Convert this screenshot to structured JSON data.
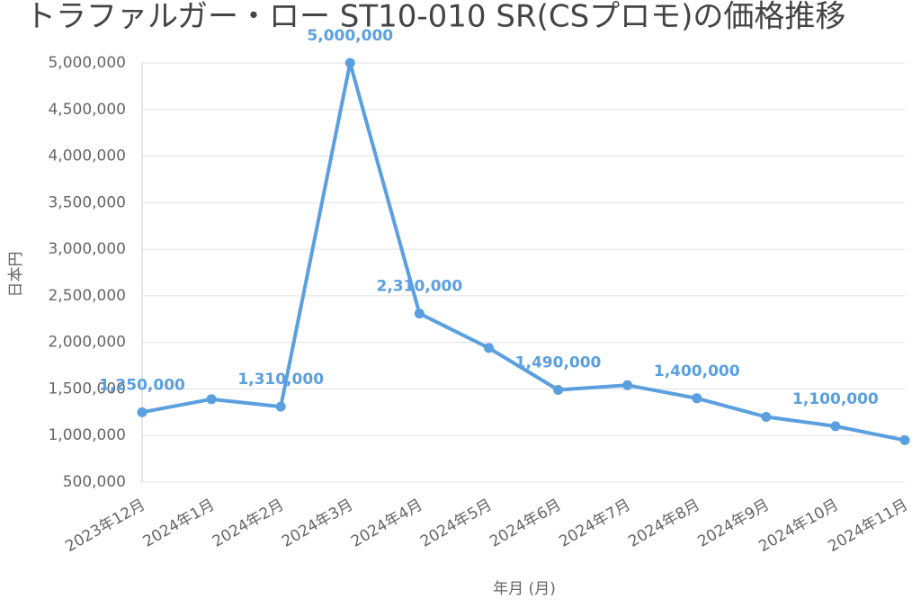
{
  "chart_data": {
    "type": "line",
    "title": "トラファルガー・ロー ST10-010 SR(CSプロモ)の価格推移",
    "x_label": "年月 (月)",
    "y_label": "日本円",
    "categories": [
      "2023年12月",
      "2024年1月",
      "2024年2月",
      "2024年3月",
      "2024年4月",
      "2024年5月",
      "2024年6月",
      "2024年7月",
      "2024年8月",
      "2024年9月",
      "2024年10月",
      "2024年11月"
    ],
    "values": [
      1250000,
      1390000,
      1310000,
      5000000,
      2310000,
      1940000,
      1490000,
      1540000,
      1400000,
      1200000,
      1100000,
      950000
    ],
    "value_labels": [
      "1,250,000",
      null,
      "1,310,000",
      "5,000,000",
      "2,310,000",
      null,
      "1,490,000",
      null,
      "1,400,000",
      null,
      "1,100,000",
      null
    ],
    "color": "#5a9fe0",
    "ylim": [
      500000,
      5000000
    ],
    "yticks": [
      {
        "value": 500000,
        "label": "500,000"
      },
      {
        "value": 1000000,
        "label": "1,000,000"
      },
      {
        "value": 1500000,
        "label": "1,500,000"
      },
      {
        "value": 2000000,
        "label": "2,000,000"
      },
      {
        "value": 2500000,
        "label": "2,500,000"
      },
      {
        "value": 3000000,
        "label": "3,000,000"
      },
      {
        "value": 3500000,
        "label": "3,500,000"
      },
      {
        "value": 4000000,
        "label": "4,000,000"
      },
      {
        "value": 4500000,
        "label": "4,500,000"
      },
      {
        "value": 5000000,
        "label": "5,000,000"
      }
    ],
    "grid": true
  }
}
